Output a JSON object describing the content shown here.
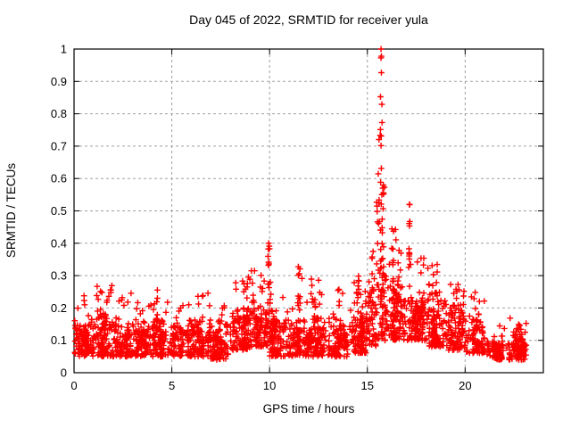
{
  "chart_data": {
    "type": "scatter",
    "title": "Day 045 of 2022, SRMTID for receiver yula",
    "xlabel": "GPS time / hours",
    "ylabel": "SRMTID / TECUs",
    "xlim": [
      0,
      24
    ],
    "ylim": [
      0,
      1
    ],
    "xticks": [
      0,
      5,
      10,
      15,
      20
    ],
    "xtick_labels": [
      "0",
      "5",
      "10",
      "15",
      "20"
    ],
    "yticks": [
      0,
      0.1,
      0.2,
      0.3,
      0.4,
      0.5,
      0.6,
      0.7,
      0.8,
      0.9,
      1
    ],
    "ytick_labels": [
      "0",
      "0.1",
      "0.2",
      "0.3",
      "0.4",
      "0.5",
      "0.6",
      "0.7",
      "0.8",
      "0.9",
      "1"
    ],
    "grid": true,
    "legend": false,
    "marker": "plus",
    "marker_color": "#ff0000",
    "grid_color": "#a0a0a0",
    "axis_color": "#000000",
    "x_data_range": [
      0.0,
      23.15
    ],
    "seed": 2022045,
    "bins_schema": [
      "x_start",
      "x_end",
      "y_low",
      "y_typical_high",
      "y_max",
      "count"
    ],
    "band_bins": [
      [
        0,
        1,
        0.05,
        0.18,
        0.24,
        115
      ],
      [
        1,
        2,
        0.05,
        0.2,
        0.27,
        115
      ],
      [
        2,
        3,
        0.05,
        0.18,
        0.25,
        110
      ],
      [
        3,
        4,
        0.05,
        0.17,
        0.23,
        105
      ],
      [
        4,
        5,
        0.05,
        0.18,
        0.26,
        110
      ],
      [
        5,
        6,
        0.05,
        0.16,
        0.21,
        100
      ],
      [
        6,
        7,
        0.05,
        0.18,
        0.26,
        105
      ],
      [
        7,
        8,
        0.04,
        0.16,
        0.21,
        100
      ],
      [
        8,
        9,
        0.07,
        0.22,
        0.3,
        115
      ],
      [
        9,
        10,
        0.08,
        0.24,
        0.32,
        115
      ],
      [
        10,
        11,
        0.05,
        0.2,
        0.3,
        105
      ],
      [
        11,
        12,
        0.05,
        0.2,
        0.3,
        105
      ],
      [
        12,
        13,
        0.05,
        0.18,
        0.3,
        105
      ],
      [
        13,
        14,
        0.05,
        0.18,
        0.26,
        105
      ],
      [
        14,
        15,
        0.06,
        0.22,
        0.3,
        110
      ],
      [
        15,
        15.5,
        0.08,
        0.28,
        0.38,
        55
      ],
      [
        15.5,
        16,
        0.1,
        0.35,
        0.55,
        60
      ],
      [
        16,
        17,
        0.1,
        0.32,
        0.46,
        120
      ],
      [
        17,
        18,
        0.1,
        0.3,
        0.4,
        120
      ],
      [
        18,
        19,
        0.08,
        0.25,
        0.34,
        110
      ],
      [
        19,
        20,
        0.07,
        0.22,
        0.28,
        105
      ],
      [
        20,
        21,
        0.06,
        0.18,
        0.25,
        100
      ],
      [
        21,
        22,
        0.04,
        0.11,
        0.15,
        100
      ],
      [
        22,
        23.15,
        0.04,
        0.12,
        0.18,
        110
      ]
    ],
    "spikes_schema": [
      "x",
      "y_min",
      "y_max",
      "count"
    ],
    "spikes": [
      [
        8.85,
        0.15,
        0.31,
        8
      ],
      [
        9.95,
        0.18,
        0.4,
        10
      ],
      [
        10.05,
        0.15,
        0.33,
        6
      ],
      [
        11.5,
        0.18,
        0.33,
        8
      ],
      [
        12.3,
        0.15,
        0.28,
        6
      ],
      [
        14.55,
        0.16,
        0.3,
        7
      ],
      [
        15.55,
        0.25,
        0.62,
        12
      ],
      [
        15.7,
        0.3,
        1.0,
        22
      ],
      [
        15.8,
        0.25,
        0.6,
        10
      ],
      [
        16.3,
        0.2,
        0.42,
        8
      ],
      [
        16.6,
        0.2,
        0.4,
        7
      ],
      [
        17.15,
        0.2,
        0.52,
        12
      ],
      [
        18.1,
        0.15,
        0.34,
        8
      ],
      [
        19.5,
        0.12,
        0.27,
        6
      ],
      [
        22.75,
        0.06,
        0.16,
        7
      ]
    ],
    "highlight_points": [
      [
        15.7,
        1.0
      ],
      [
        17.15,
        0.52
      ],
      [
        9.95,
        0.4
      ]
    ]
  }
}
